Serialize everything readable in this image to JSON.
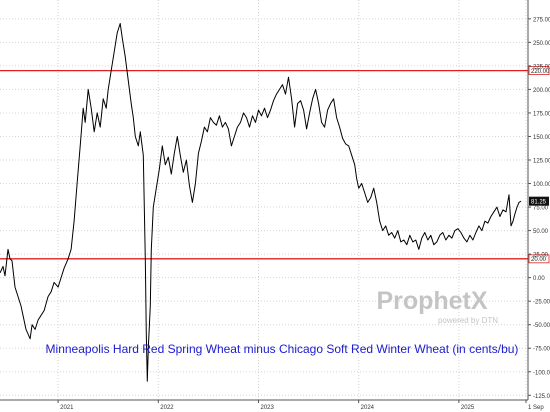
{
  "chart_data": {
    "type": "line",
    "title": "Minneapolis Hard Red Spring Wheat minus Chicago Soft Red Winter Wheat (in cents/bu)",
    "watermark": {
      "brand": "ProphetX",
      "tagline": "powered by DTN"
    },
    "xlabel": "",
    "ylabel": "",
    "x_range": [
      "2020-07",
      "2025-09"
    ],
    "ylim": [
      -130,
      295
    ],
    "y_ticks": [
      275,
      250,
      225,
      200,
      175,
      150,
      125,
      100,
      75,
      50,
      25,
      0,
      -25,
      -50,
      -75,
      -100,
      -125
    ],
    "y_tick_labels": [
      "275.00",
      "250.00",
      "225.00",
      "200.00",
      "175.00",
      "150.00",
      "125.00",
      "100.00",
      "75.00",
      "50.00",
      "25.00",
      "0.00",
      "-25.00",
      "-50.00",
      "-75.00",
      "-100.00",
      "-125.00"
    ],
    "x_ticks": [
      {
        "x": 2021.0,
        "label": "2021"
      },
      {
        "x": 2022.0,
        "label": "2022"
      },
      {
        "x": 2023.0,
        "label": "2023"
      },
      {
        "x": 2024.0,
        "label": "2024"
      },
      {
        "x": 2025.0,
        "label": "2025"
      },
      {
        "x": 2025.67,
        "label": "1 Sep"
      }
    ],
    "grid": true,
    "reference_lines": [
      {
        "y": 220,
        "label": "220.00",
        "color": "#e02020"
      },
      {
        "y": 20,
        "label": "20.00",
        "color": "#e02020"
      }
    ],
    "last_value": {
      "y": 81.25,
      "label": "81.25"
    },
    "series": [
      {
        "name": "",
        "color": "#000000",
        "points": [
          [
            2020.42,
            5
          ],
          [
            2020.45,
            12
          ],
          [
            2020.47,
            2
          ],
          [
            2020.5,
            30
          ],
          [
            2020.52,
            20
          ],
          [
            2020.54,
            18
          ],
          [
            2020.57,
            -10
          ],
          [
            2020.6,
            -20
          ],
          [
            2020.63,
            -30
          ],
          [
            2020.66,
            -45
          ],
          [
            2020.68,
            -55
          ],
          [
            2020.7,
            -60
          ],
          [
            2020.72,
            -65
          ],
          [
            2020.74,
            -50
          ],
          [
            2020.77,
            -55
          ],
          [
            2020.8,
            -45
          ],
          [
            2020.83,
            -40
          ],
          [
            2020.86,
            -35
          ],
          [
            2020.9,
            -20
          ],
          [
            2020.93,
            -15
          ],
          [
            2020.96,
            -5
          ],
          [
            2021.0,
            -10
          ],
          [
            2021.03,
            0
          ],
          [
            2021.06,
            10
          ],
          [
            2021.1,
            20
          ],
          [
            2021.13,
            30
          ],
          [
            2021.16,
            60
          ],
          [
            2021.19,
            100
          ],
          [
            2021.22,
            140
          ],
          [
            2021.25,
            180
          ],
          [
            2021.27,
            165
          ],
          [
            2021.3,
            200
          ],
          [
            2021.33,
            180
          ],
          [
            2021.36,
            155
          ],
          [
            2021.39,
            175
          ],
          [
            2021.42,
            160
          ],
          [
            2021.45,
            190
          ],
          [
            2021.48,
            180
          ],
          [
            2021.5,
            200
          ],
          [
            2021.53,
            220
          ],
          [
            2021.56,
            240
          ],
          [
            2021.59,
            260
          ],
          [
            2021.62,
            270
          ],
          [
            2021.64,
            255
          ],
          [
            2021.67,
            235
          ],
          [
            2021.7,
            210
          ],
          [
            2021.73,
            185
          ],
          [
            2021.75,
            170
          ],
          [
            2021.77,
            150
          ],
          [
            2021.8,
            140
          ],
          [
            2021.82,
            155
          ],
          [
            2021.85,
            130
          ],
          [
            2021.87,
            20
          ],
          [
            2021.88,
            -60
          ],
          [
            2021.89,
            -110
          ],
          [
            2021.9,
            -75
          ],
          [
            2021.92,
            -30
          ],
          [
            2021.93,
            30
          ],
          [
            2021.95,
            75
          ],
          [
            2021.98,
            95
          ],
          [
            2022.01,
            115
          ],
          [
            2022.04,
            140
          ],
          [
            2022.07,
            120
          ],
          [
            2022.1,
            128
          ],
          [
            2022.13,
            110
          ],
          [
            2022.16,
            132
          ],
          [
            2022.19,
            150
          ],
          [
            2022.22,
            130
          ],
          [
            2022.25,
            112
          ],
          [
            2022.28,
            125
          ],
          [
            2022.31,
            98
          ],
          [
            2022.34,
            80
          ],
          [
            2022.37,
            100
          ],
          [
            2022.4,
            132
          ],
          [
            2022.43,
            145
          ],
          [
            2022.46,
            160
          ],
          [
            2022.49,
            155
          ],
          [
            2022.52,
            170
          ],
          [
            2022.55,
            165
          ],
          [
            2022.58,
            162
          ],
          [
            2022.61,
            172
          ],
          [
            2022.64,
            160
          ],
          [
            2022.67,
            165
          ],
          [
            2022.7,
            158
          ],
          [
            2022.73,
            140
          ],
          [
            2022.76,
            150
          ],
          [
            2022.79,
            160
          ],
          [
            2022.82,
            165
          ],
          [
            2022.85,
            175
          ],
          [
            2022.88,
            170
          ],
          [
            2022.91,
            160
          ],
          [
            2022.94,
            172
          ],
          [
            2022.97,
            165
          ],
          [
            2023.0,
            178
          ],
          [
            2023.03,
            172
          ],
          [
            2023.06,
            180
          ],
          [
            2023.09,
            170
          ],
          [
            2023.12,
            178
          ],
          [
            2023.15,
            188
          ],
          [
            2023.18,
            195
          ],
          [
            2023.21,
            200
          ],
          [
            2023.24,
            205
          ],
          [
            2023.27,
            195
          ],
          [
            2023.3,
            213
          ],
          [
            2023.33,
            190
          ],
          [
            2023.36,
            160
          ],
          [
            2023.39,
            185
          ],
          [
            2023.42,
            188
          ],
          [
            2023.45,
            178
          ],
          [
            2023.48,
            158
          ],
          [
            2023.51,
            175
          ],
          [
            2023.54,
            190
          ],
          [
            2023.57,
            200
          ],
          [
            2023.6,
            185
          ],
          [
            2023.63,
            165
          ],
          [
            2023.66,
            160
          ],
          [
            2023.69,
            178
          ],
          [
            2023.72,
            185
          ],
          [
            2023.75,
            190
          ],
          [
            2023.78,
            170
          ],
          [
            2023.81,
            160
          ],
          [
            2023.84,
            148
          ],
          [
            2023.87,
            142
          ],
          [
            2023.9,
            140
          ],
          [
            2023.93,
            130
          ],
          [
            2023.96,
            120
          ],
          [
            2023.98,
            105
          ],
          [
            2024.0,
            95
          ],
          [
            2024.03,
            100
          ],
          [
            2024.06,
            90
          ],
          [
            2024.09,
            80
          ],
          [
            2024.12,
            85
          ],
          [
            2024.15,
            95
          ],
          [
            2024.18,
            80
          ],
          [
            2024.21,
            60
          ],
          [
            2024.24,
            50
          ],
          [
            2024.27,
            55
          ],
          [
            2024.3,
            45
          ],
          [
            2024.33,
            48
          ],
          [
            2024.36,
            42
          ],
          [
            2024.39,
            50
          ],
          [
            2024.42,
            38
          ],
          [
            2024.45,
            40
          ],
          [
            2024.48,
            35
          ],
          [
            2024.51,
            45
          ],
          [
            2024.54,
            38
          ],
          [
            2024.57,
            40
          ],
          [
            2024.6,
            30
          ],
          [
            2024.63,
            42
          ],
          [
            2024.66,
            48
          ],
          [
            2024.69,
            40
          ],
          [
            2024.72,
            45
          ],
          [
            2024.75,
            35
          ],
          [
            2024.78,
            38
          ],
          [
            2024.81,
            45
          ],
          [
            2024.84,
            48
          ],
          [
            2024.87,
            40
          ],
          [
            2024.9,
            45
          ],
          [
            2024.93,
            42
          ],
          [
            2024.96,
            50
          ],
          [
            2024.99,
            52
          ],
          [
            2025.02,
            48
          ],
          [
            2025.05,
            42
          ],
          [
            2025.08,
            38
          ],
          [
            2025.11,
            45
          ],
          [
            2025.14,
            40
          ],
          [
            2025.17,
            48
          ],
          [
            2025.2,
            55
          ],
          [
            2025.23,
            50
          ],
          [
            2025.26,
            60
          ],
          [
            2025.29,
            58
          ],
          [
            2025.32,
            65
          ],
          [
            2025.35,
            70
          ],
          [
            2025.38,
            75
          ],
          [
            2025.41,
            65
          ],
          [
            2025.44,
            72
          ],
          [
            2025.47,
            70
          ],
          [
            2025.5,
            88
          ],
          [
            2025.52,
            55
          ],
          [
            2025.54,
            60
          ],
          [
            2025.56,
            68
          ],
          [
            2025.58,
            75
          ],
          [
            2025.6,
            80
          ],
          [
            2025.62,
            81.25
          ]
        ]
      }
    ]
  }
}
